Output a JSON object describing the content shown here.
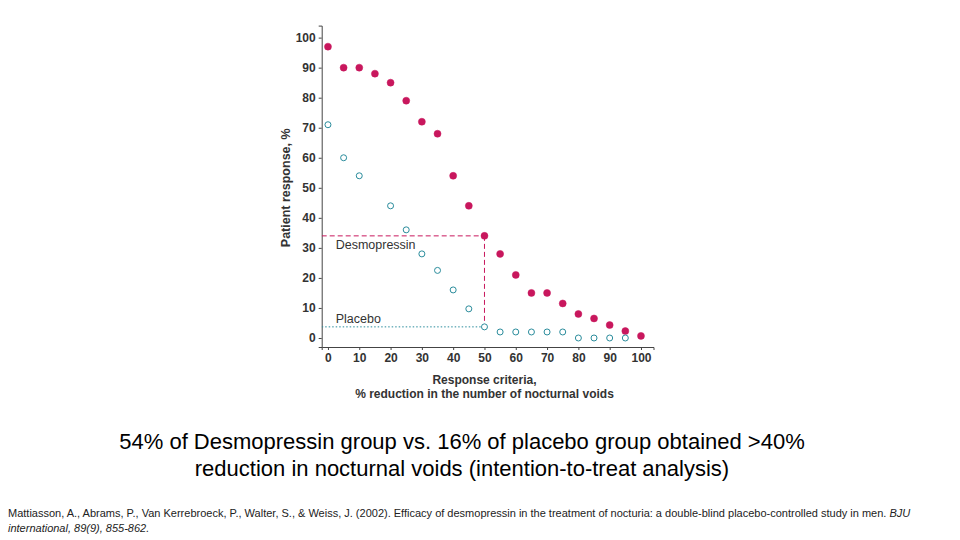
{
  "chart_data": {
    "type": "scatter",
    "xlabel": [
      "Response criteria,",
      "% reduction in the number of nocturnal voids"
    ],
    "ylabel": "Patient response, %",
    "x": [
      0,
      5,
      10,
      15,
      20,
      25,
      30,
      35,
      40,
      45,
      50,
      55,
      60,
      65,
      70,
      75,
      80,
      85,
      90,
      95,
      100
    ],
    "series": [
      {
        "name": "Desmopressin",
        "color": "#c8175d",
        "marker": "filled_circle",
        "line_style": "dashed",
        "values": [
          97,
          90,
          90,
          88,
          85,
          79,
          72,
          68,
          54,
          44,
          34,
          28,
          21,
          15,
          15,
          11.5,
          8,
          6.5,
          4.3,
          2.3,
          0.7
        ]
      },
      {
        "name": "Placebo",
        "color": "#2a8c9c",
        "marker": "open_circle",
        "line_style": "dotted",
        "values": [
          71,
          60,
          54,
          null,
          44,
          36,
          28,
          22.5,
          16,
          9.7,
          3.7,
          2,
          2,
          2,
          2,
          2,
          0,
          0,
          0,
          0,
          null
        ]
      }
    ],
    "reference_x": 50,
    "xlim": [
      -2,
      104
    ],
    "ylim": [
      -3,
      104
    ],
    "xticks": [
      0,
      10,
      20,
      30,
      40,
      50,
      60,
      70,
      80,
      90,
      100
    ],
    "yticks": [
      0,
      10,
      20,
      30,
      40,
      50,
      60,
      70,
      80,
      90,
      100
    ],
    "grid": false,
    "caption": [
      "54% of Desmopressin group vs. 16% of placebo group obtained >40%",
      "reduction in nocturnal voids (intention-to-treat analysis)"
    ],
    "citation": "Mattiasson, A., Abrams, P., Van Kerrebroeck, P., Walter, S., & Weiss, J. (2002). Efficacy of desmopressin in the treatment of nocturia: a double-blind placebo-controlled study in men.",
    "journal": "BJU international, 89(9), 855-862."
  }
}
